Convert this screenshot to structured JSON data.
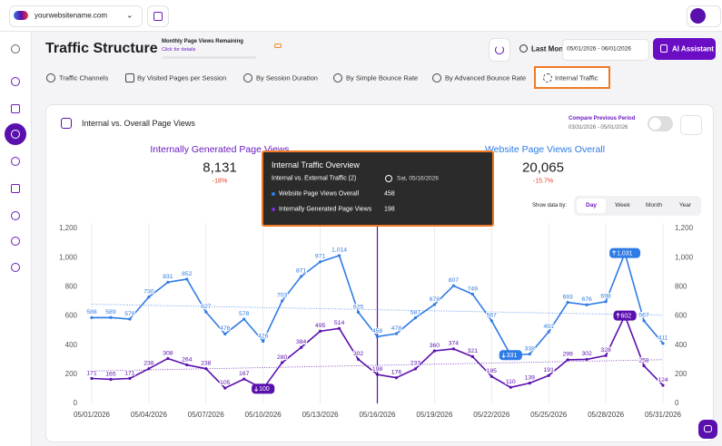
{
  "topbar": {
    "site": "yourwebsitename.com"
  },
  "header": {
    "title": "Traffic Structure",
    "quota_title": "Monthly Page Views Remaining",
    "quota_link": "Click for details",
    "date_preset": "Last Month",
    "date_range": "05/01/2026 - 06/01/2026",
    "ai_button": "AI Assistant"
  },
  "tabs": [
    "Traffic Channels",
    "By Visited Pages per Session",
    "By Session Duration",
    "By Simple Bounce Rate",
    "By Advanced Bounce Rate",
    "Internal Traffic"
  ],
  "active_tab": 5,
  "card": {
    "title": "Internal vs. Overall Page Views",
    "compare_label": "Compare Previous Period",
    "compare_range": "03/31/2026 - 05/01/2026",
    "stats": [
      {
        "label": "Internally Generated Page Views",
        "value": "8,131",
        "change": "-18%"
      },
      {
        "label": "Website Page Views Overall",
        "value": "20,065",
        "change": "-15.7%"
      }
    ],
    "show_by_label": "Show data by:",
    "periods": [
      "Day",
      "Week",
      "Month",
      "Year"
    ],
    "active_period": 0
  },
  "tooltip": {
    "title": "Internal Traffic Overview",
    "subtitle": "Internal vs. External Traffic  (2)",
    "date": "Sat, 05/16/2026",
    "rows": [
      {
        "label": "Website Page Views Overall",
        "value": "458"
      },
      {
        "label": "Internally Generated Page Views",
        "value": "198"
      }
    ]
  },
  "chart_data": {
    "type": "line",
    "x": [
      "05/01/2026",
      "05/02/2026",
      "05/03/2026",
      "05/04/2026",
      "05/05/2026",
      "05/06/2026",
      "05/07/2026",
      "05/08/2026",
      "05/09/2026",
      "05/10/2026",
      "05/11/2026",
      "05/12/2026",
      "05/13/2026",
      "05/14/2026",
      "05/15/2026",
      "05/16/2026",
      "05/17/2026",
      "05/18/2026",
      "05/19/2026",
      "05/20/2026",
      "05/21/2026",
      "05/22/2026",
      "05/23/2026",
      "05/24/2026",
      "05/25/2026",
      "05/26/2026",
      "05/27/2026",
      "05/28/2026",
      "05/29/2026",
      "05/30/2026",
      "05/31/2026"
    ],
    "xticks": [
      "05/01/2026",
      "05/04/2026",
      "05/07/2026",
      "05/10/2026",
      "05/13/2026",
      "05/16/2026",
      "05/19/2026",
      "05/22/2026",
      "05/25/2026",
      "05/28/2026",
      "05/31/2026"
    ],
    "ylim": [
      0,
      1200
    ],
    "yticks": [
      0,
      200,
      400,
      600,
      800,
      {
        "value": 1000,
        "label": "1,000"
      },
      {
        "value": 1200,
        "label": "1,200"
      }
    ],
    "y2lim": [
      0,
      1200
    ],
    "y2ticks": [
      0,
      200,
      400,
      600,
      800,
      {
        "value": 1000,
        "label": "1,000"
      },
      {
        "value": 1200,
        "label": "1,200"
      }
    ],
    "grid": "x",
    "highlight_extremes": true,
    "hover_x": "05/16/2026",
    "series": [
      {
        "name": "Website Page Views Overall",
        "color": "#2f7be5",
        "values": [
          588,
          589,
          578,
          730,
          831,
          852,
          627,
          476,
          578,
          426,
          703,
          871,
          971,
          1014,
          625,
          458,
          478,
          587,
          678,
          807,
          749,
          567,
          331,
          338,
          491,
          693,
          676,
          698,
          1031,
          567,
          411
        ],
        "value_labels": [
          "588",
          "589",
          "578",
          "730",
          "831",
          "852",
          "627",
          "476",
          "578",
          "426",
          "703",
          "871",
          "971",
          "1,014",
          "625",
          "458",
          "478",
          "587",
          "678",
          "807",
          "749",
          "567",
          "331",
          "338",
          "491",
          "693",
          "676",
          "698",
          "1,031",
          "567",
          "411"
        ],
        "trend": [
          680,
          605
        ]
      },
      {
        "name": "Internally Generated Page Views",
        "color": "#5a10ad",
        "values": [
          171,
          165,
          171,
          238,
          308,
          264,
          238,
          105,
          167,
          100,
          280,
          384,
          495,
          514,
          302,
          198,
          176,
          237,
          360,
          374,
          321,
          185,
          110,
          139,
          191,
          299,
          302,
          328,
          602,
          258,
          124
        ],
        "value_labels": [
          "171",
          "165",
          "171",
          "238",
          "308",
          "264",
          "238",
          "105",
          "167",
          "100",
          "280",
          "384",
          "495",
          "514",
          "302",
          "198",
          "176",
          "237",
          "360",
          "374",
          "321",
          "185",
          "110",
          "139",
          "191",
          "299",
          "302",
          "328",
          "602",
          "258",
          "124"
        ],
        "trend": [
          222,
          300
        ]
      }
    ]
  }
}
